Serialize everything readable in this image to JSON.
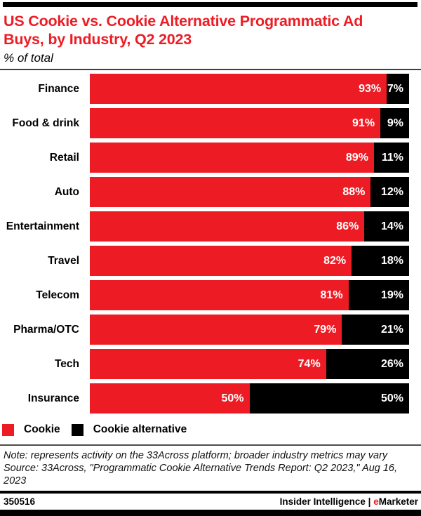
{
  "accent_color": "#ED1C24",
  "header": {
    "title_lines": [
      "US Cookie vs. Cookie Alternative Programmatic Ad",
      "Buys, by Industry, Q2 2023"
    ],
    "subtitle": "% of total"
  },
  "chart_data": {
    "type": "bar",
    "orientation": "horizontal",
    "stacked": true,
    "title": "US Cookie vs. Cookie Alternative Programmatic Ad Buys, by Industry, Q2 2023",
    "subtitle": "% of total",
    "xlim": [
      0,
      100
    ],
    "grid": false,
    "legend_position": "bottom-left",
    "value_suffix": "%",
    "categories": [
      "Finance",
      "Food & drink",
      "Retail",
      "Auto",
      "Entertainment",
      "Travel",
      "Telecom",
      "Pharma/OTC",
      "Tech",
      "Insurance"
    ],
    "series": [
      {
        "name": "Cookie",
        "color": "#ED1C24",
        "values": [
          93,
          91,
          89,
          88,
          86,
          82,
          81,
          79,
          74,
          50
        ],
        "display": [
          "93%",
          "91%",
          "89%",
          "88%",
          "86%",
          "82%",
          "81%",
          "79%",
          "74%",
          "50%"
        ]
      },
      {
        "name": "Cookie alternative",
        "color": "#000000",
        "values": [
          7,
          9,
          11,
          12,
          14,
          18,
          19,
          21,
          26,
          50
        ],
        "display": [
          "7%",
          "9%",
          "11%",
          "12%",
          "14%",
          "18%",
          "19%",
          "21%",
          "26%",
          "50%"
        ]
      }
    ]
  },
  "notes": {
    "note": "Note: represents activity on the 33Across platform; broader industry metrics may vary",
    "source": "Source: 33Across, \"Programmatic Cookie Alternative Trends Report: Q2 2023,\" Aug 16, 2023"
  },
  "footer": {
    "chart_id": "350516",
    "brand_left": "Insider Intelligence",
    "brand_separator": "|",
    "brand_e": "e",
    "brand_marketer": "Marketer"
  }
}
